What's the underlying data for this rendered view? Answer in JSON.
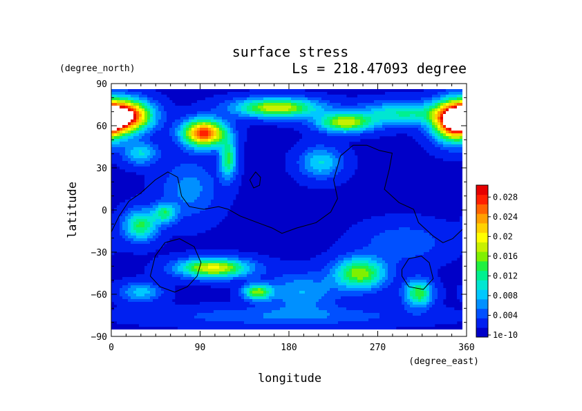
{
  "chart_data": {
    "type": "heatmap",
    "title": "surface stress",
    "subtitle": "Ls = 218.47093 degree",
    "xlabel": "longitude",
    "ylabel": "latitude",
    "xunit": "(degree_east)",
    "yunit": "(degree_north)",
    "xlim": [
      0,
      360
    ],
    "ylim": [
      -90,
      90
    ],
    "xticks": [
      0,
      90,
      180,
      270,
      360
    ],
    "yticks": [
      -90,
      -60,
      -30,
      0,
      30,
      60,
      90
    ],
    "grid": false,
    "colorbar": {
      "labels": [
        "1e-10",
        "0.004",
        "0.008",
        "0.012",
        "0.016",
        "0.02",
        "0.024",
        "0.028"
      ],
      "min": 0,
      "max": 0.03,
      "colors": [
        "#0000c8",
        "#0020f0",
        "#0050ff",
        "#0090ff",
        "#00c8ff",
        "#00e6d2",
        "#00f090",
        "#20f040",
        "#80f000",
        "#c8f000",
        "#ffff00",
        "#ffd200",
        "#ffa000",
        "#ff6400",
        "#ff2000",
        "#e60000"
      ]
    },
    "stress_centers": [
      {
        "lon": 15,
        "lat": 70,
        "amp": 0.028,
        "slon": 18,
        "slat": 8
      },
      {
        "lon": 352,
        "lat": 66,
        "amp": 0.03,
        "slon": 15,
        "slat": 10
      },
      {
        "lon": 95,
        "lat": 57,
        "amp": 0.026,
        "slon": 15,
        "slat": 7
      },
      {
        "lon": 170,
        "lat": 76,
        "amp": 0.017,
        "slon": 30,
        "slat": 5
      },
      {
        "lon": 240,
        "lat": 65,
        "amp": 0.016,
        "slon": 20,
        "slat": 5
      },
      {
        "lon": 300,
        "lat": 72,
        "amp": 0.01,
        "slon": 30,
        "slat": 6
      },
      {
        "lon": 120,
        "lat": 38,
        "amp": 0.012,
        "slon": 6,
        "slat": 10
      },
      {
        "lon": 30,
        "lat": 42,
        "amp": 0.008,
        "slon": 12,
        "slat": 6
      },
      {
        "lon": 215,
        "lat": 35,
        "amp": 0.008,
        "slon": 15,
        "slat": 8
      },
      {
        "lon": 30,
        "lat": -12,
        "amp": 0.012,
        "slon": 12,
        "slat": 8
      },
      {
        "lon": 55,
        "lat": -3,
        "amp": 0.01,
        "slon": 8,
        "slat": 5
      },
      {
        "lon": 80,
        "lat": 15,
        "amp": 0.005,
        "slon": 20,
        "slat": 15
      },
      {
        "lon": 105,
        "lat": -44,
        "amp": 0.018,
        "slon": 25,
        "slat": 5
      },
      {
        "lon": 150,
        "lat": -62,
        "amp": 0.014,
        "slon": 10,
        "slat": 4
      },
      {
        "lon": 255,
        "lat": -48,
        "amp": 0.015,
        "slon": 18,
        "slat": 8
      },
      {
        "lon": 315,
        "lat": -63,
        "amp": 0.013,
        "slon": 10,
        "slat": 7
      },
      {
        "lon": 30,
        "lat": -62,
        "amp": 0.007,
        "slon": 15,
        "slat": 5
      },
      {
        "lon": 195,
        "lat": -62,
        "amp": 0.006,
        "slon": 25,
        "slat": 10
      },
      {
        "lon": 300,
        "lat": -25,
        "amp": 0.004,
        "slon": 30,
        "slat": 10
      },
      {
        "lon": 180,
        "lat": -80,
        "amp": 0.004,
        "slon": 90,
        "slat": 5
      }
    ],
    "contours": [
      [
        [
          0,
          -17
        ],
        [
          8,
          -5
        ],
        [
          18,
          6
        ],
        [
          30,
          12
        ],
        [
          45,
          22
        ],
        [
          58,
          28
        ],
        [
          68,
          24
        ],
        [
          72,
          10
        ],
        [
          80,
          2
        ],
        [
          95,
          0
        ],
        [
          110,
          2
        ],
        [
          120,
          0
        ],
        [
          132,
          -5
        ],
        [
          150,
          -10
        ],
        [
          165,
          -14
        ],
        [
          175,
          -18
        ],
        [
          190,
          -14
        ],
        [
          210,
          -10
        ],
        [
          225,
          -2
        ],
        [
          232,
          8
        ],
        [
          228,
          22
        ],
        [
          235,
          40
        ],
        [
          248,
          48
        ],
        [
          262,
          48
        ],
        [
          275,
          44
        ],
        [
          288,
          42
        ],
        [
          285,
          30
        ],
        [
          280,
          15
        ],
        [
          295,
          5
        ],
        [
          310,
          0
        ],
        [
          315,
          -10
        ],
        [
          330,
          -20
        ],
        [
          340,
          -25
        ],
        [
          350,
          -22
        ],
        [
          360,
          -15
        ]
      ],
      [
        [
          40,
          -50
        ],
        [
          45,
          -35
        ],
        [
          55,
          -25
        ],
        [
          70,
          -22
        ],
        [
          85,
          -28
        ],
        [
          92,
          -40
        ],
        [
          88,
          -50
        ],
        [
          78,
          -58
        ],
        [
          65,
          -62
        ],
        [
          50,
          -58
        ],
        [
          40,
          -50
        ]
      ],
      [
        [
          298,
          -45
        ],
        [
          305,
          -37
        ],
        [
          318,
          -35
        ],
        [
          326,
          -40
        ],
        [
          330,
          -52
        ],
        [
          320,
          -60
        ],
        [
          305,
          -58
        ],
        [
          298,
          -50
        ],
        [
          298,
          -45
        ]
      ],
      [
        [
          142,
          22
        ],
        [
          148,
          28
        ],
        [
          153,
          24
        ],
        [
          152,
          18
        ],
        [
          146,
          16
        ],
        [
          142,
          22
        ]
      ]
    ]
  }
}
